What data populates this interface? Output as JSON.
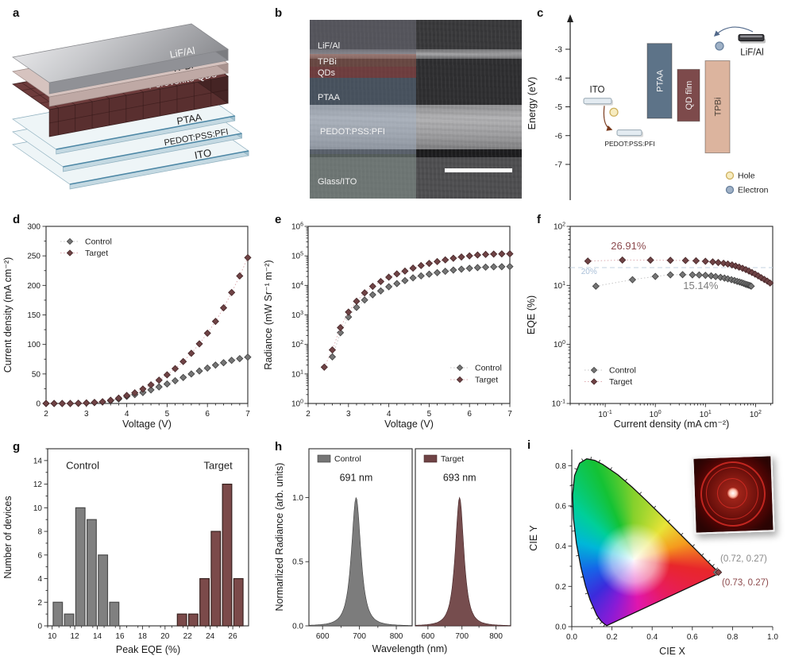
{
  "colors": {
    "control": "#757575",
    "control_edge": "#3e3e3e",
    "control_line": "#c6c6c6",
    "target": "#6f4345",
    "target_edge": "#452628",
    "target_line": "#dcaab0",
    "hist_control": "#808080",
    "hist_control_edge": "#4a4a4a",
    "hist_target": "#7b4a4a",
    "hist_target_edge": "#38221f",
    "axis": "#2b2b2b",
    "text": "#1a1a1a",
    "ref_line": "#c9d7e4",
    "ref_text": "#a8bfd8",
    "annot_target": "#8c4a4e",
    "annot_control": "#7d7d7d",
    "cie_control": "#8a8a8a",
    "cie_target": "#8d4a4c"
  },
  "panels": {
    "a": {
      "label": "a",
      "layers": [
        "LiF/Al",
        "TPBi",
        "Perovskite QDs",
        "PTAA",
        "PEDOT:PSS:PFI",
        "ITO"
      ]
    },
    "b": {
      "label": "b",
      "layers": [
        "LiF/Al",
        "TPBi",
        "QDs",
        "PTAA",
        "PEDOT:PSS:PFI",
        "Glass/ITO"
      ]
    },
    "c": {
      "label": "c"
    },
    "d": {
      "label": "d"
    },
    "e": {
      "label": "e"
    },
    "f": {
      "label": "f"
    },
    "g": {
      "label": "g"
    },
    "h": {
      "label": "h"
    },
    "i": {
      "label": "i"
    }
  },
  "chart_data": [
    {
      "id": "energy",
      "type": "diagram",
      "ylabel": "Energy (eV)",
      "yticks": [
        -3,
        -4,
        -5,
        -6,
        -7
      ],
      "levels": [
        {
          "name": "ITO",
          "energy": -4.8,
          "label_side": "above"
        },
        {
          "name": "PEDOT:PSS:PFI",
          "energy": -5.9,
          "label_side": "below"
        },
        {
          "name": "LiF/Al",
          "energy": -2.6,
          "label_side": "below"
        }
      ],
      "bars": [
        {
          "name": "PTAA",
          "top": -2.8,
          "bottom": -5.4,
          "color": "#5d7388",
          "text": "#f2f2f2"
        },
        {
          "name": "QD film",
          "top": -3.7,
          "bottom": -5.5,
          "color": "#7d4a4b",
          "text": "#f2f2f2"
        },
        {
          "name": "TPBi",
          "top": -3.4,
          "bottom": -6.6,
          "color": "#dcb49e",
          "text": "#4a4038"
        }
      ],
      "carriers": [
        {
          "label": "Hole",
          "fill": "#f7ecc0",
          "stroke": "#cdb05e"
        },
        {
          "label": "Electron",
          "fill": "#9fb1c6",
          "stroke": "#68809d"
        }
      ]
    },
    {
      "id": "jv",
      "type": "scatter",
      "xlabel": "Voltage (V)",
      "ylabel": "Current density (mA cm⁻²)",
      "xlim": [
        2,
        7
      ],
      "ylim": [
        0,
        300
      ],
      "xticks": [
        2,
        3,
        4,
        5,
        6,
        7
      ],
      "yticks": [
        0,
        50,
        100,
        150,
        200,
        250,
        300
      ],
      "legend_pos": "top-left",
      "series": [
        {
          "name": "Control",
          "x": [
            2.0,
            2.2,
            2.4,
            2.6,
            2.8,
            3.0,
            3.2,
            3.4,
            3.6,
            3.8,
            4.0,
            4.2,
            4.4,
            4.6,
            4.8,
            5.0,
            5.2,
            5.4,
            5.6,
            5.8,
            6.0,
            6.2,
            6.4,
            6.6,
            6.8,
            7.0
          ],
          "y": [
            0,
            0,
            0,
            0,
            0.3,
            0.8,
            1.5,
            2.5,
            4.5,
            7.5,
            12,
            15,
            18.5,
            23,
            28,
            33,
            38.5,
            44,
            50,
            55,
            60,
            65,
            69,
            73,
            76,
            78.5
          ]
        },
        {
          "name": "Target",
          "x": [
            2.0,
            2.2,
            2.4,
            2.6,
            2.8,
            3.0,
            3.2,
            3.4,
            3.6,
            3.8,
            4.0,
            4.2,
            4.4,
            4.6,
            4.8,
            5.0,
            5.2,
            5.4,
            5.6,
            5.8,
            6.0,
            6.2,
            6.4,
            6.6,
            6.8,
            7.0
          ],
          "y": [
            0,
            0,
            0,
            0,
            0.3,
            0.9,
            1.8,
            3,
            5.5,
            9,
            13.5,
            18,
            24.5,
            31.5,
            39.5,
            48.5,
            59,
            71,
            85,
            101,
            119,
            139,
            162,
            188,
            216,
            247
          ]
        }
      ]
    },
    {
      "id": "radiance",
      "type": "scatter",
      "yscale": "log",
      "xlabel": "Voltage (V)",
      "ylabel": "Radiance (mW Sr⁻¹ m⁻²)",
      "xlim": [
        2,
        7
      ],
      "ylim": [
        1,
        1000000
      ],
      "yexp": [
        0,
        1,
        2,
        3,
        4,
        5,
        6
      ],
      "xticks": [
        2,
        3,
        4,
        5,
        6,
        7
      ],
      "legend_pos": "bottom-right",
      "series": [
        {
          "name": "Control",
          "x": [
            2.6,
            2.8,
            3.0,
            3.2,
            3.4,
            3.6,
            3.8,
            4.0,
            4.2,
            4.4,
            4.6,
            4.8,
            5.0,
            5.2,
            5.4,
            5.6,
            5.8,
            6.0,
            6.2,
            6.4,
            6.6,
            6.8,
            7.0
          ],
          "y": [
            38,
            250,
            850,
            1800,
            3200,
            4800,
            6500,
            9000,
            11500,
            14500,
            18000,
            21000,
            24000,
            27000,
            30000,
            33000,
            35500,
            38000,
            40000,
            41500,
            42500,
            43000,
            43500
          ]
        },
        {
          "name": "Target",
          "x": [
            2.4,
            2.6,
            2.8,
            3.0,
            3.2,
            3.4,
            3.6,
            3.8,
            4.0,
            4.2,
            4.4,
            4.6,
            4.8,
            5.0,
            5.2,
            5.4,
            5.6,
            5.8,
            6.0,
            6.2,
            6.4,
            6.6,
            6.8,
            7.0
          ],
          "y": [
            17,
            65,
            370,
            1250,
            2900,
            5600,
            9300,
            13500,
            19000,
            24500,
            30500,
            38500,
            47000,
            55500,
            64000,
            73000,
            83000,
            92000,
            100000,
            107000,
            112000,
            115000,
            116500,
            117500
          ]
        }
      ]
    },
    {
      "id": "eqe",
      "type": "scatter",
      "xscale": "log",
      "yscale": "log",
      "xlabel": "Current density (mA cm⁻²)",
      "ylabel": "EQE (%)",
      "xlim": [
        0.02,
        220
      ],
      "ylim": [
        0.1,
        100
      ],
      "xexp": [
        -1,
        0,
        1,
        2
      ],
      "yexp": [
        -1,
        0,
        1,
        2
      ],
      "legend_pos": "bottom-left",
      "refline": {
        "y": 20
      },
      "annotations": [
        {
          "text": "26.91%",
          "x": 0.13,
          "y": 41,
          "color_key": "annot_target",
          "size": 13
        },
        {
          "text": "15.14%",
          "x": 3.6,
          "y": 8.6,
          "color_key": "annot_control",
          "size": 13
        },
        {
          "text": "20%",
          "x": 0.033,
          "y": 15.5,
          "color_key": "ref_text",
          "size": 10
        }
      ],
      "series": [
        {
          "name": "Control",
          "x": [
            0.065,
            0.35,
            1.0,
            2.0,
            3.5,
            5.5,
            7.5,
            10,
            13,
            16,
            20,
            24,
            28,
            33,
            38,
            43,
            48,
            53,
            58,
            63,
            68,
            73,
            78,
            82
          ],
          "y": [
            9.7,
            12.5,
            14.2,
            15.1,
            15.2,
            15.1,
            15.0,
            14.8,
            14.5,
            14.1,
            13.7,
            13.3,
            12.9,
            12.5,
            12.1,
            11.7,
            11.4,
            11.1,
            10.8,
            10.5,
            10.3,
            10.1,
            9.9,
            9.7
          ]
        },
        {
          "name": "Target",
          "x": [
            0.045,
            0.22,
            0.8,
            2.0,
            4.0,
            6.5,
            10,
            14,
            18,
            23,
            28,
            34,
            40,
            47,
            55,
            64,
            74,
            85,
            98,
            113,
            130,
            150,
            172,
            195
          ],
          "y": [
            25.8,
            26.9,
            26.8,
            26.6,
            26.4,
            26.1,
            25.6,
            25.0,
            24.4,
            23.7,
            23.0,
            22.2,
            21.3,
            20.4,
            19.5,
            18.5,
            17.5,
            16.5,
            15.5,
            14.5,
            13.5,
            12.6,
            11.8,
            11.0
          ]
        }
      ]
    },
    {
      "id": "histogram",
      "type": "bar",
      "xlabel": "Peak EQE (%)",
      "ylabel": "Number of devices",
      "xlim": [
        9.6,
        27.4
      ],
      "ylim": [
        0,
        15
      ],
      "xticks": [
        10,
        12,
        14,
        16,
        18,
        20,
        22,
        24,
        26
      ],
      "yticks": [
        0,
        2,
        4,
        6,
        8,
        10,
        12,
        14
      ],
      "bin_width": 0.82,
      "series": [
        {
          "name": "Control",
          "label_xy": [
            12.7,
            13.3
          ],
          "centers": [
            10.5,
            11.5,
            12.5,
            13.5,
            14.5,
            15.5
          ],
          "counts": [
            2,
            1,
            10,
            9,
            6,
            2
          ]
        },
        {
          "name": "Target",
          "label_xy": [
            24.7,
            13.3
          ],
          "centers": [
            21.5,
            22.5,
            23.5,
            24.5,
            25.5,
            26.5
          ],
          "counts": [
            1,
            1,
            4,
            8,
            12,
            4
          ]
        }
      ]
    },
    {
      "id": "spectra",
      "type": "area",
      "xlabel": "Wavelength (nm)",
      "ylabel": "Normarlized Radiance (arb. units)",
      "xlim": [
        563,
        843
      ],
      "ylim": [
        0,
        1.38
      ],
      "xticks": [
        600,
        700,
        800
      ],
      "yticks": [
        0.0,
        0.5,
        1.0
      ],
      "series": [
        {
          "name": "Control",
          "peak_nm": 691,
          "peak_label": "691 nm",
          "fwhm_nm": 30
        },
        {
          "name": "Target",
          "peak_nm": 693,
          "peak_label": "693 nm",
          "fwhm_nm": 30
        }
      ]
    },
    {
      "id": "cie",
      "type": "scatter",
      "xlabel": "CIE X",
      "ylabel": "CIE Y",
      "xlim": [
        0,
        1.0
      ],
      "ylim": [
        0,
        0.88
      ],
      "xticks": [
        0.0,
        0.2,
        0.4,
        0.6,
        0.8,
        1.0
      ],
      "yticks": [
        0.0,
        0.2,
        0.4,
        0.6,
        0.8
      ],
      "points": [
        {
          "name": "Control",
          "x": 0.72,
          "y": 0.27,
          "label": "(0.72, 0.27)",
          "color_key": "cie_control"
        },
        {
          "name": "Target",
          "x": 0.73,
          "y": 0.27,
          "label": "(0.73, 0.27)",
          "color_key": "cie_target"
        }
      ],
      "locus": [
        [
          0.1741,
          0.005
        ],
        [
          0.1566,
          0.0177
        ],
        [
          0.144,
          0.0297
        ],
        [
          0.1241,
          0.0578
        ],
        [
          0.0913,
          0.1327
        ],
        [
          0.0687,
          0.2007
        ],
        [
          0.0454,
          0.295
        ],
        [
          0.0235,
          0.4127
        ],
        [
          0.0082,
          0.5384
        ],
        [
          0.0039,
          0.6548
        ],
        [
          0.0139,
          0.7502
        ],
        [
          0.0389,
          0.812
        ],
        [
          0.0743,
          0.8338
        ],
        [
          0.1142,
          0.8262
        ],
        [
          0.1547,
          0.8059
        ],
        [
          0.2296,
          0.7543
        ],
        [
          0.3016,
          0.6923
        ],
        [
          0.3731,
          0.6245
        ],
        [
          0.4441,
          0.5547
        ],
        [
          0.5125,
          0.4866
        ],
        [
          0.5752,
          0.4242
        ],
        [
          0.627,
          0.3725
        ],
        [
          0.6658,
          0.334
        ],
        [
          0.6915,
          0.3083
        ],
        [
          0.7079,
          0.292
        ],
        [
          0.726,
          0.274
        ],
        [
          0.7347,
          0.2653
        ]
      ]
    }
  ]
}
